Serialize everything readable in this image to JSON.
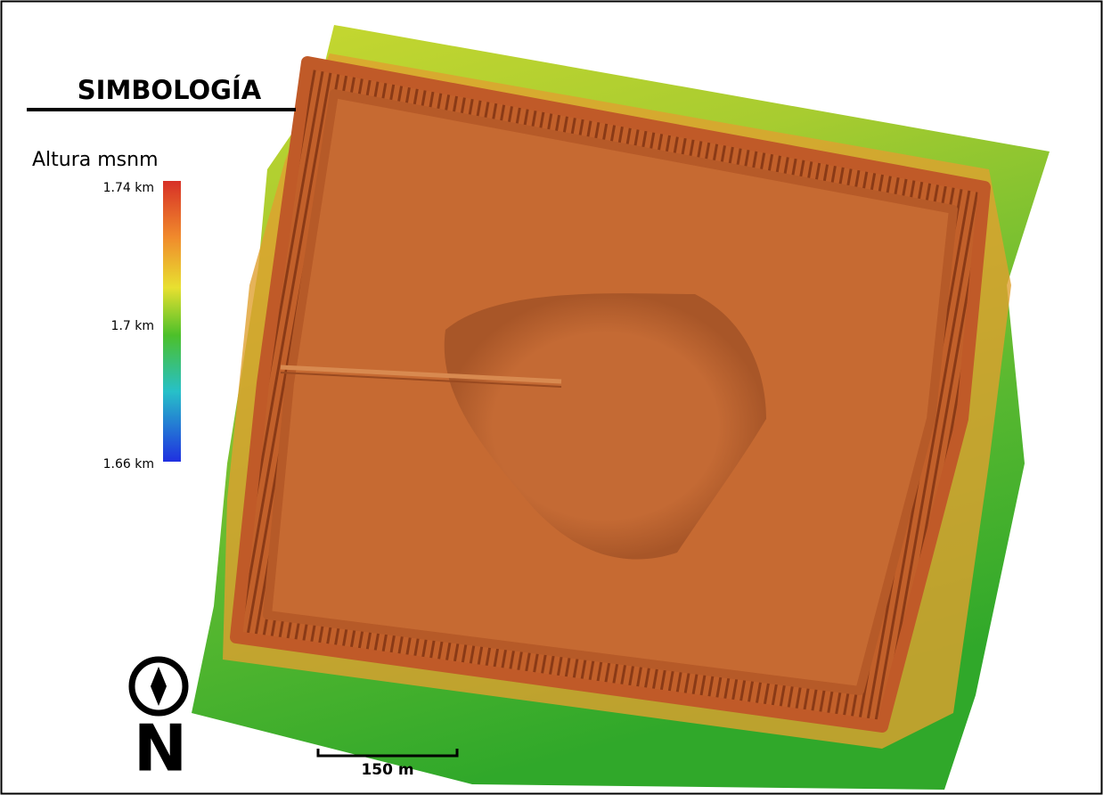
{
  "legend": {
    "title": "SIMBOLOGÍA",
    "colorbar": {
      "label": "Altura msnm",
      "ticks": [
        "1.74 km",
        "1.7 km",
        "1.66 km"
      ]
    }
  },
  "north_arrow": {
    "label": "N"
  },
  "scale_bar": {
    "label": "150 m"
  }
}
